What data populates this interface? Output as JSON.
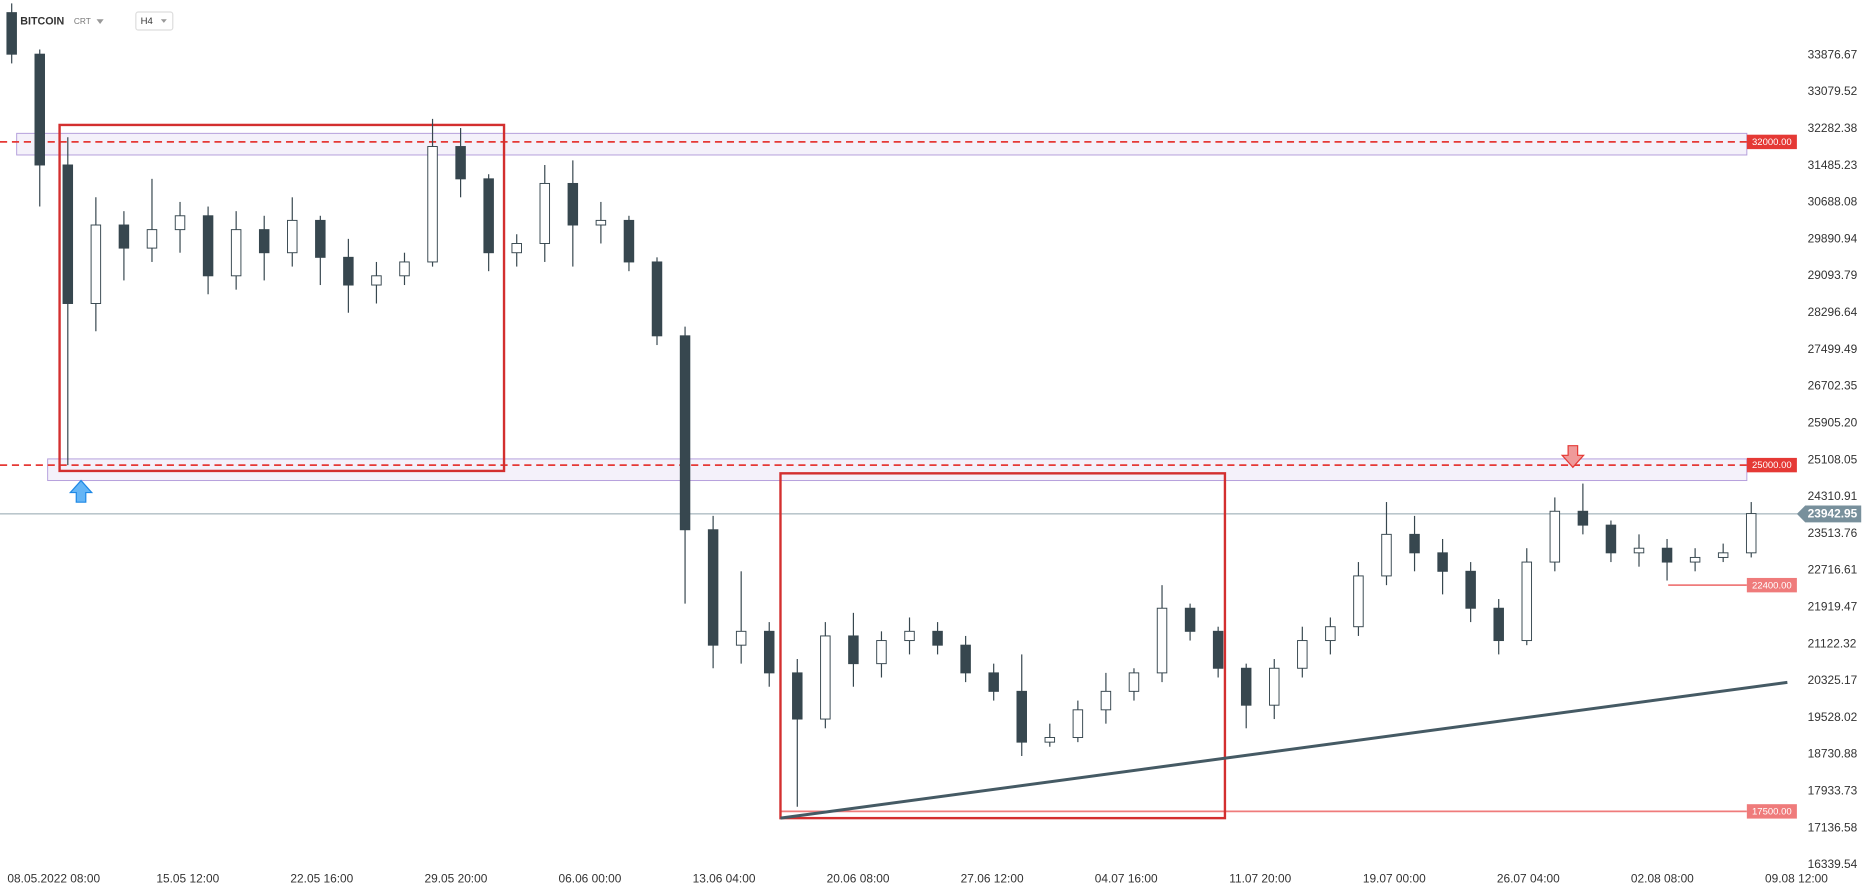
{
  "header": {
    "symbol": "BITCOIN",
    "type": "CRT",
    "interval": "H4"
  },
  "chart_data": {
    "type": "candlestick",
    "x": [
      -54,
      -18,
      18,
      54,
      90,
      126,
      162,
      198,
      234,
      270,
      306,
      342,
      378,
      414,
      450,
      486,
      522,
      558,
      594,
      630,
      666,
      702,
      738,
      774,
      810,
      846,
      882,
      918,
      954,
      990,
      1026,
      1062,
      1098,
      1134,
      1170,
      1206,
      1242,
      1278,
      1314,
      1350,
      1386,
      1422,
      1458,
      1494,
      1530,
      1566,
      1602,
      1638,
      1674,
      1710,
      1746,
      1782,
      1818,
      1854,
      1890,
      1926,
      1962,
      1998,
      2034,
      2070,
      2106,
      2142,
      2178
    ],
    "open": [
      34800,
      33900,
      31500,
      28500,
      30200,
      29700,
      30100,
      30400,
      29100,
      30100,
      29600,
      30300,
      29500,
      28900,
      29100,
      29400,
      31900,
      31200,
      29600,
      29800,
      31100,
      30200,
      30300,
      29400,
      27800,
      23600,
      21100,
      21400,
      20500,
      19500,
      21300,
      20700,
      21200,
      21400,
      21100,
      20500,
      20100,
      19000,
      19100,
      19700,
      20100,
      20500,
      21900,
      21400,
      20600,
      19800,
      20600,
      21200,
      21500,
      22600,
      23500,
      23100,
      22700,
      21900,
      21200,
      22900,
      24000,
      23700,
      23100,
      23200,
      22900,
      23000,
      23100
    ],
    "high": [
      35000,
      34000,
      32100,
      30800,
      30500,
      31200,
      30700,
      30600,
      30500,
      30400,
      30800,
      30400,
      29900,
      29400,
      29600,
      32500,
      32300,
      31300,
      30000,
      31500,
      31600,
      30700,
      30400,
      29500,
      28000,
      23900,
      22700,
      21600,
      20800,
      21600,
      21800,
      21400,
      21700,
      21600,
      21300,
      20700,
      20900,
      19400,
      19900,
      20500,
      20600,
      22400,
      22000,
      21500,
      20700,
      20800,
      21500,
      21700,
      22900,
      24200,
      23900,
      23400,
      22900,
      22100,
      23200,
      24300,
      24600,
      23800,
      23500,
      23400,
      23200,
      23300,
      24200
    ],
    "low": [
      33700,
      30600,
      25000,
      27900,
      29000,
      29400,
      29600,
      28700,
      28800,
      29000,
      29300,
      28900,
      28300,
      28500,
      28900,
      29300,
      30800,
      29200,
      29300,
      29400,
      29300,
      29800,
      29200,
      27600,
      22000,
      20600,
      20700,
      20200,
      17600,
      19300,
      20200,
      20400,
      20900,
      20900,
      20300,
      19900,
      18700,
      18900,
      19000,
      19400,
      19900,
      20300,
      21200,
      20400,
      19300,
      19500,
      20400,
      20900,
      21300,
      22400,
      22700,
      22200,
      21600,
      20900,
      21100,
      22700,
      23500,
      22900,
      22800,
      22500,
      22700,
      22900,
      23000
    ],
    "close": [
      33900,
      31500,
      28500,
      30200,
      29700,
      30100,
      30400,
      29100,
      30100,
      29600,
      30300,
      29500,
      28900,
      29100,
      29400,
      31900,
      31200,
      29600,
      29800,
      31100,
      30200,
      30300,
      29400,
      27800,
      23600,
      21100,
      21400,
      20500,
      19500,
      21300,
      20700,
      21200,
      21400,
      21100,
      20500,
      20100,
      19000,
      19100,
      19700,
      20100,
      20500,
      21900,
      21400,
      20600,
      19800,
      20600,
      21200,
      21500,
      22600,
      23500,
      23100,
      22700,
      21900,
      21200,
      22900,
      24000,
      23700,
      23100,
      23200,
      22900,
      23000,
      23100,
      23950
    ],
    "up_color": "#ffffff",
    "down_color": "#37474f",
    "outline_color": "#37474f",
    "xlim": [
      -69,
      2232
    ],
    "xticks": [
      {
        "value": 0,
        "label": "08.05.2022  08:00"
      },
      {
        "value": 172,
        "label": "15.05  12:00"
      },
      {
        "value": 344,
        "label": "22.05  16:00"
      },
      {
        "value": 516,
        "label": "29.05  20:00"
      },
      {
        "value": 688,
        "label": "06.06  00:00"
      },
      {
        "value": 860,
        "label": "13.06  04:00"
      },
      {
        "value": 1032,
        "label": "20.06  08:00"
      },
      {
        "value": 1204,
        "label": "27.06  12:00"
      },
      {
        "value": 1376,
        "label": "04.07  16:00"
      },
      {
        "value": 1548,
        "label": "11.07  20:00"
      },
      {
        "value": 1720,
        "label": "19.07  00:00"
      },
      {
        "value": 1892,
        "label": "26.07  04:00"
      },
      {
        "value": 2064,
        "label": "02.08  08:00"
      },
      {
        "value": 2236,
        "label": "09.08  12:00"
      }
    ],
    "ylim": [
      16339.54,
      35073.4
    ],
    "yticks": [
      33876.67,
      33079.52,
      32282.38,
      31485.23,
      30688.08,
      29890.94,
      29093.79,
      28296.64,
      27499.49,
      26702.35,
      {
        "value": 25905.2,
        "label": "25905.20"
      },
      25108.05,
      24310.91,
      23513.76,
      22716.61,
      21919.47,
      21122.32,
      20325.17,
      19528.02,
      18730.88,
      17933.73,
      17136.58,
      16339.54
    ],
    "levels": [
      {
        "value": 32000,
        "label": "32000.00",
        "color": "#e53935",
        "style": "dashed"
      },
      {
        "value": 25000,
        "label": "25000.00",
        "color": "#e53935",
        "style": "dashed"
      },
      {
        "value": 22400,
        "label": "22400.00",
        "color": "#ef7b7b",
        "style": "solid"
      },
      {
        "value": 17500,
        "label": "17500.00",
        "color": "#ef7b7b",
        "style": "solid"
      }
    ],
    "last_price": 23942.95,
    "last_color": "#78909c"
  }
}
